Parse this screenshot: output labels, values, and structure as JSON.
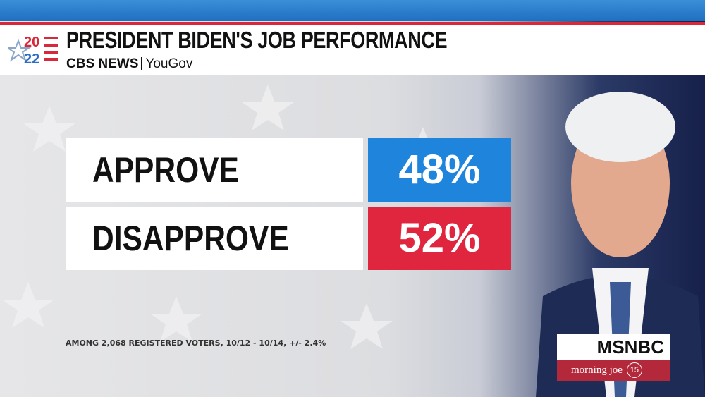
{
  "header": {
    "logo_top": "20",
    "logo_bottom": "22",
    "title": "PRESIDENT BIDEN'S JOB PERFORMANCE",
    "source_1": "CBS NEWS",
    "source_2": "YouGov"
  },
  "rows": [
    {
      "label": "APPROVE",
      "value": "48%"
    },
    {
      "label": "DISAPPROVE",
      "value": "52%"
    }
  ],
  "footnote": "AMONG 2,068 REGISTERED VOTERS, 10/12 - 10/14, +/- 2.4%",
  "network": {
    "name": "MSNBC",
    "show": "morning joe",
    "episode": "15"
  }
}
